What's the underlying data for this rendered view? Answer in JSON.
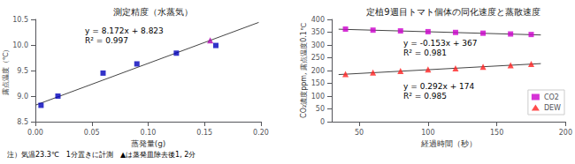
{
  "chart_data": [
    {
      "type": "scatter",
      "title": "測定精度（水蒸気）",
      "xlabel": "蒸発量(g)",
      "ylabel": "露点温度（℃）",
      "xlim": [
        0,
        0.2
      ],
      "ylim": [
        8.5,
        10.5
      ],
      "xticks": [
        {
          "value": 0,
          "label": "0.00"
        },
        0.05,
        {
          "value": 0.1,
          "label": "0.10"
        },
        0.15,
        {
          "value": 0.2,
          "label": "0.20"
        }
      ],
      "yticks": [
        8.5,
        {
          "value": 9,
          "label": "9.0"
        },
        9.5,
        {
          "value": 10,
          "label": "10.0"
        },
        10.5
      ],
      "grid": false,
      "annotations": [
        "y = 8.172x + 8.823",
        "R² = 0.997"
      ],
      "note": "注）気温23.3℃　1分置きに計測　▲は蒸発皿除去後1, 2分",
      "series": [
        {
          "type": "line",
          "color": "#444444",
          "x": [
            0,
            0.198
          ],
          "values": [
            8.823,
            10.441056
          ]
        },
        {
          "type": "scatter",
          "color": "#0000bb",
          "marker": "square",
          "x": [
            0.005,
            0.02,
            0.06,
            0.09,
            0.125,
            0.16
          ],
          "values": [
            8.82,
            9.0,
            9.45,
            9.63,
            9.84,
            9.99
          ]
        },
        {
          "type": "scatter",
          "color": "#aa00aa",
          "marker": "triangle",
          "x": [
            0.155
          ],
          "values": [
            10.09
          ]
        }
      ]
    },
    {
      "type": "scatter",
      "title": "定植9週目トマト個体の同化速度と蒸散速度",
      "xlabel": "経過時間（秒）",
      "ylabel": "CO₂濃度ppm, 露点温度0.1℃",
      "xlim": [
        30,
        200
      ],
      "ylim": [
        0,
        400
      ],
      "xticks": [
        50,
        100,
        150,
        200
      ],
      "yticks": [
        0,
        50,
        100,
        150,
        200,
        250,
        300,
        350,
        400
      ],
      "grid": false,
      "legend": "lower right",
      "annotations": [
        "y = -0.153x + 367",
        "R² = 0.981",
        "y = 0.292x + 174",
        "R² = 0.985"
      ],
      "series": [
        {
          "type": "line",
          "color": "#444444",
          "x": [
            35,
            182
          ],
          "values": [
            361.645,
            339.154
          ]
        },
        {
          "type": "scatter",
          "name": "CO2",
          "color": "#cc00cc",
          "marker": "square",
          "x": [
            40,
            60,
            80,
            100,
            120,
            140,
            160,
            175
          ],
          "values": [
            362,
            358,
            355,
            352,
            349,
            346,
            343,
            341
          ]
        },
        {
          "type": "line",
          "color": "#444444",
          "x": [
            35,
            182
          ],
          "values": [
            184.22,
            227.144
          ]
        },
        {
          "type": "scatter",
          "name": "DEW",
          "color": "#ff2020",
          "marker": "triangle",
          "x": [
            40,
            60,
            80,
            100,
            120,
            140,
            160,
            175
          ],
          "values": [
            186,
            192,
            198,
            204,
            209,
            215,
            221,
            226
          ]
        }
      ]
    }
  ]
}
